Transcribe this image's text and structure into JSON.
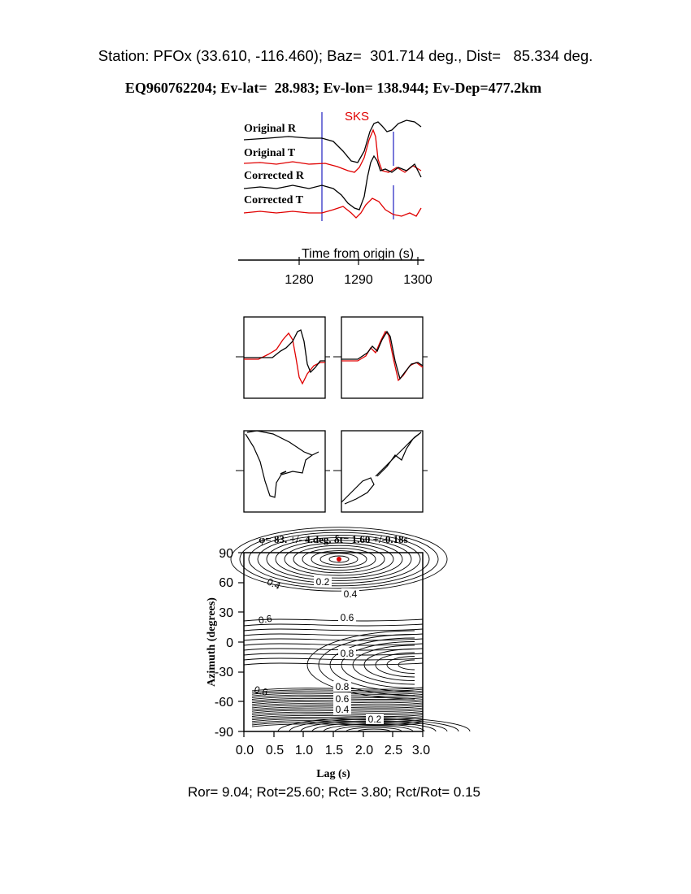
{
  "header": {
    "station_line": "Station: PFOx (33.610, -116.460); Baz=  301.714 deg., Dist=   85.334 deg.",
    "event_line": "EQ960762204; Ev-lat=  28.983; Ev-lon= 138.944; Ev-Dep=477.2km"
  },
  "traces": {
    "phase_label": "SKS",
    "labels": [
      "Original R",
      "Original T",
      "Corrected R",
      "Corrected T"
    ],
    "time_axis_label": "Time from origin (s)",
    "time_ticks": [
      "1280",
      "1290",
      "1300"
    ]
  },
  "contour": {
    "title": "φ= 83. +/- 4.deg.  δt= 1.60 +/-0.18s",
    "ylabel": "Azimuth (degrees)",
    "xlabel": "Lag (s)",
    "y_ticks": [
      "90",
      "60",
      "30",
      "0",
      "-30",
      "-60",
      "-90"
    ],
    "x_ticks": [
      "0.0",
      "0.5",
      "1.0",
      "1.5",
      "2.0",
      "2.5",
      "3.0"
    ],
    "contour_labels": [
      "0.4",
      "0.2",
      "0.4",
      "0.6",
      "0.6",
      "0.8",
      "0.6",
      "0.8",
      "0.6",
      "0.4",
      "0.2"
    ],
    "best_fit": {
      "lag_s": 1.6,
      "azimuth_deg": 83
    },
    "colors": {
      "marker": "#e00000",
      "lines": "#000000"
    }
  },
  "footer": {
    "stats_line": "Ror= 9.04; Rot=25.60; Rct= 3.80; Rct/Rot= 0.15"
  },
  "colors": {
    "trace_red": "#e00000",
    "window_blue": "#2020c0"
  }
}
